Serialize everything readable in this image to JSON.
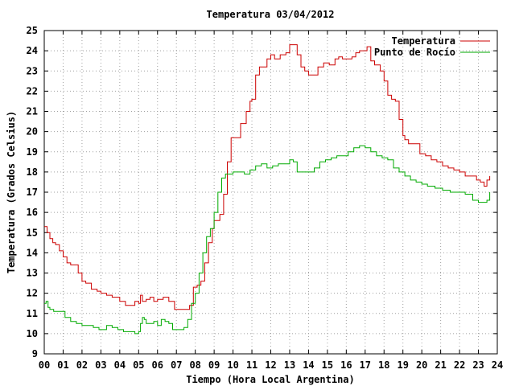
{
  "chart_data": {
    "type": "line",
    "title": "Temperatura 03/04/2012",
    "xlabel": "Tiempo (Hora Local Argentina)",
    "ylabel": "Temperatura (Grados Celsius)",
    "xlim": [
      0,
      24
    ],
    "ylim": [
      9,
      25
    ],
    "x_ticks": [
      "00",
      "01",
      "02",
      "03",
      "04",
      "05",
      "06",
      "07",
      "08",
      "09",
      "10",
      "11",
      "12",
      "13",
      "14",
      "15",
      "16",
      "17",
      "18",
      "19",
      "20",
      "21",
      "22",
      "23",
      "24"
    ],
    "y_ticks": [
      9,
      10,
      11,
      12,
      13,
      14,
      15,
      16,
      17,
      18,
      19,
      20,
      21,
      22,
      23,
      24,
      25
    ],
    "grid": true,
    "legend_position": "top-right",
    "series": [
      {
        "name": "Temperatura",
        "color": "#cc0000",
        "x": [
          0.0,
          0.15,
          0.3,
          0.45,
          0.6,
          0.8,
          1.0,
          1.2,
          1.4,
          1.6,
          1.8,
          2.0,
          2.2,
          2.5,
          2.8,
          3.0,
          3.3,
          3.6,
          4.0,
          4.3,
          4.6,
          4.8,
          5.0,
          5.1,
          5.2,
          5.4,
          5.6,
          5.8,
          6.0,
          6.3,
          6.6,
          6.9,
          7.2,
          7.5,
          7.7,
          7.9,
          8.1,
          8.3,
          8.5,
          8.7,
          8.9,
          9.0,
          9.1,
          9.2,
          9.3,
          9.5,
          9.7,
          9.9,
          10.1,
          10.4,
          10.7,
          10.9,
          11.0,
          11.2,
          11.4,
          11.6,
          11.8,
          12.0,
          12.2,
          12.5,
          12.8,
          13.0,
          13.2,
          13.4,
          13.6,
          13.8,
          14.0,
          14.3,
          14.5,
          14.8,
          15.1,
          15.4,
          15.6,
          15.8,
          16.0,
          16.3,
          16.5,
          16.7,
          16.9,
          17.1,
          17.3,
          17.5,
          17.6,
          17.8,
          18.0,
          18.2,
          18.4,
          18.6,
          18.8,
          19.0,
          19.1,
          19.3,
          19.6,
          19.9,
          20.2,
          20.5,
          20.8,
          21.1,
          21.4,
          21.7,
          22.0,
          22.3,
          22.6,
          22.9,
          23.1,
          23.3,
          23.45,
          23.6
        ],
        "y": [
          15.3,
          15.0,
          14.7,
          14.5,
          14.4,
          14.1,
          13.8,
          13.5,
          13.4,
          13.4,
          13.0,
          12.6,
          12.5,
          12.2,
          12.1,
          12.0,
          11.9,
          11.8,
          11.6,
          11.4,
          11.4,
          11.6,
          11.5,
          11.9,
          11.6,
          11.7,
          11.8,
          11.6,
          11.7,
          11.8,
          11.6,
          11.2,
          11.2,
          11.2,
          11.4,
          12.3,
          12.4,
          12.6,
          13.5,
          14.5,
          15.2,
          15.6,
          15.6,
          15.6,
          15.9,
          16.9,
          18.5,
          19.7,
          19.7,
          20.4,
          21.0,
          21.5,
          21.6,
          22.8,
          23.2,
          23.2,
          23.6,
          23.8,
          23.6,
          23.8,
          23.9,
          24.3,
          24.3,
          23.8,
          23.2,
          23.0,
          22.8,
          22.8,
          23.2,
          23.4,
          23.3,
          23.6,
          23.7,
          23.6,
          23.6,
          23.7,
          23.9,
          24.0,
          24.0,
          24.2,
          23.5,
          23.3,
          23.3,
          23.0,
          22.5,
          21.8,
          21.6,
          21.5,
          20.6,
          19.8,
          19.6,
          19.4,
          19.4,
          18.9,
          18.8,
          18.6,
          18.5,
          18.3,
          18.2,
          18.1,
          18.0,
          17.8,
          17.8,
          17.6,
          17.5,
          17.3,
          17.6,
          17.8
        ]
      },
      {
        "name": "Punto de Rocío",
        "color": "#00aa00",
        "x": [
          0.0,
          0.1,
          0.2,
          0.3,
          0.5,
          0.8,
          1.1,
          1.4,
          1.7,
          2.0,
          2.3,
          2.6,
          2.9,
          3.1,
          3.3,
          3.6,
          3.9,
          4.2,
          4.5,
          4.8,
          5.0,
          5.1,
          5.2,
          5.3,
          5.4,
          5.6,
          5.8,
          6.0,
          6.2,
          6.4,
          6.6,
          6.8,
          7.1,
          7.4,
          7.6,
          7.8,
          8.0,
          8.2,
          8.4,
          8.6,
          8.8,
          9.0,
          9.2,
          9.4,
          9.6,
          9.8,
          10.0,
          10.3,
          10.6,
          10.9,
          11.2,
          11.5,
          11.8,
          12.1,
          12.4,
          12.7,
          13.0,
          13.2,
          13.4,
          13.7,
          14.0,
          14.3,
          14.6,
          14.9,
          15.2,
          15.5,
          15.8,
          16.1,
          16.4,
          16.7,
          17.0,
          17.3,
          17.6,
          17.9,
          18.2,
          18.5,
          18.8,
          19.1,
          19.4,
          19.7,
          20.0,
          20.3,
          20.7,
          21.1,
          21.5,
          21.9,
          22.3,
          22.7,
          23.0,
          23.3,
          23.45,
          23.6
        ],
        "y": [
          11.5,
          11.6,
          11.3,
          11.2,
          11.1,
          11.1,
          10.8,
          10.6,
          10.5,
          10.4,
          10.4,
          10.3,
          10.2,
          10.2,
          10.4,
          10.3,
          10.2,
          10.1,
          10.1,
          10.0,
          10.1,
          10.5,
          10.8,
          10.7,
          10.5,
          10.5,
          10.6,
          10.4,
          10.7,
          10.6,
          10.5,
          10.2,
          10.2,
          10.3,
          10.7,
          11.5,
          12.0,
          13.0,
          14.0,
          14.8,
          15.2,
          16.0,
          17.0,
          17.7,
          17.9,
          17.9,
          18.0,
          18.0,
          17.9,
          18.1,
          18.3,
          18.4,
          18.2,
          18.3,
          18.4,
          18.4,
          18.6,
          18.5,
          18.0,
          18.0,
          18.0,
          18.2,
          18.5,
          18.6,
          18.7,
          18.8,
          18.8,
          19.0,
          19.2,
          19.3,
          19.2,
          19.0,
          18.8,
          18.7,
          18.6,
          18.2,
          18.0,
          17.8,
          17.6,
          17.5,
          17.4,
          17.3,
          17.2,
          17.1,
          17.0,
          17.0,
          16.9,
          16.6,
          16.5,
          16.5,
          16.6,
          17.0
        ]
      }
    ]
  }
}
